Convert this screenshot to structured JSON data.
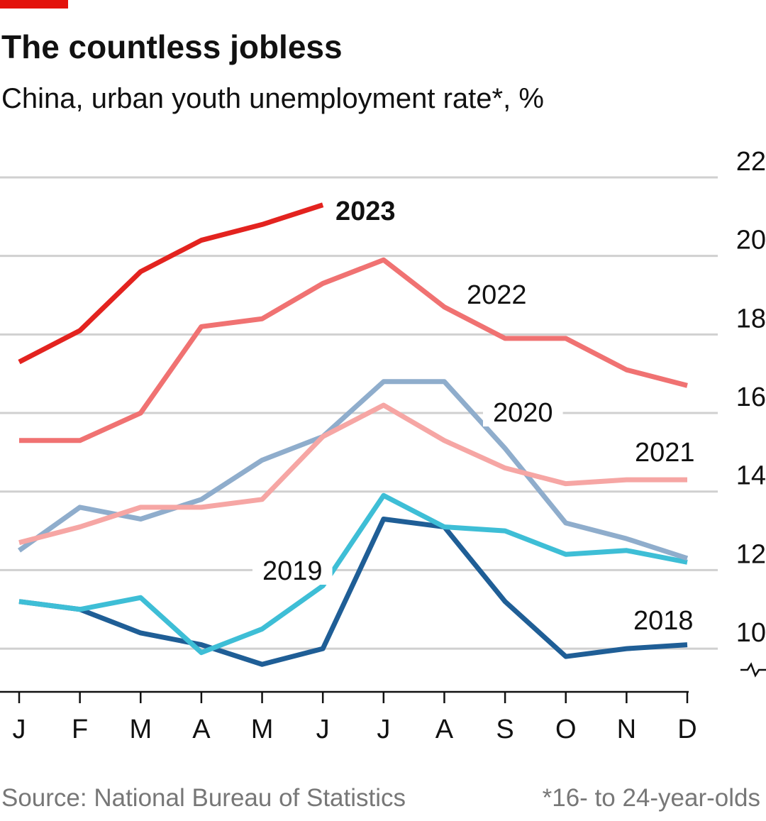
{
  "chart_data": {
    "type": "line",
    "title": "The countless jobless",
    "subtitle": "China, urban youth unemployment rate*, %",
    "source": "Source: National Bureau of Statistics",
    "note": "*16- to 24-year-olds",
    "categories": [
      "J",
      "F",
      "M",
      "A",
      "M",
      "J",
      "J",
      "A",
      "S",
      "O",
      "N",
      "D"
    ],
    "series": [
      {
        "name": "2023",
        "color": "#e3231f",
        "values": [
          17.3,
          18.1,
          19.6,
          20.4,
          20.8,
          21.3,
          null,
          null,
          null,
          null,
          null,
          null
        ]
      },
      {
        "name": "2022",
        "color": "#f07272",
        "values": [
          15.3,
          15.3,
          16.0,
          18.2,
          18.4,
          19.3,
          19.9,
          18.7,
          17.9,
          17.9,
          17.1,
          16.7
        ]
      },
      {
        "name": "2021",
        "color": "#f6a6a4",
        "values": [
          12.7,
          13.1,
          13.6,
          13.6,
          13.8,
          15.4,
          16.2,
          15.3,
          14.6,
          14.2,
          14.3,
          14.3
        ]
      },
      {
        "name": "2020",
        "color": "#8fadcc",
        "values": [
          12.5,
          13.6,
          13.3,
          13.8,
          14.8,
          15.4,
          16.8,
          16.8,
          15.1,
          13.2,
          12.8,
          12.3
        ]
      },
      {
        "name": "2019",
        "color": "#3ebed6",
        "values": [
          11.2,
          11.0,
          11.3,
          9.9,
          10.5,
          11.6,
          13.9,
          13.1,
          13.0,
          12.4,
          12.5,
          12.2
        ]
      },
      {
        "name": "2018",
        "color": "#1f5e96",
        "values": [
          11.2,
          11.0,
          10.4,
          10.1,
          9.6,
          10.0,
          13.3,
          13.1,
          11.2,
          9.8,
          10.0,
          10.1
        ]
      }
    ],
    "ylim": [
      8.9,
      22
    ],
    "yticks": [
      10,
      12,
      14,
      16,
      18,
      20,
      22
    ],
    "grid": true
  }
}
